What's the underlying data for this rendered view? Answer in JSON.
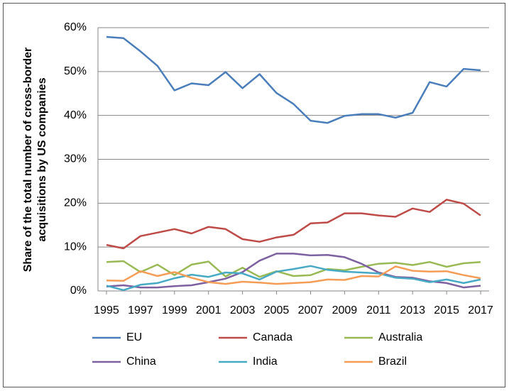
{
  "chart_data": {
    "type": "line",
    "ylabel": [
      "Share of the total number of cross-border",
      "acquisitions by US companies"
    ],
    "x": [
      1995,
      1996,
      1997,
      1998,
      1999,
      2000,
      2001,
      2002,
      2003,
      2004,
      2005,
      2006,
      2007,
      2008,
      2009,
      2010,
      2011,
      2012,
      2013,
      2014,
      2015,
      2016,
      2017
    ],
    "xlim": [
      1994.5,
      2017.5
    ],
    "xticks": [
      1995,
      1997,
      1999,
      2001,
      2003,
      2005,
      2007,
      2009,
      2011,
      2013,
      2015,
      2017
    ],
    "ylim": [
      0,
      60
    ],
    "yticks": [
      {
        "value": 0,
        "label": "0%"
      },
      {
        "value": 10,
        "label": "10%"
      },
      {
        "value": 20,
        "label": "20%"
      },
      {
        "value": 30,
        "label": "30%"
      },
      {
        "value": 40,
        "label": "40%"
      },
      {
        "value": 50,
        "label": "50%"
      },
      {
        "value": 60,
        "label": "60%"
      }
    ],
    "grid": true,
    "legend": "bottom",
    "series": [
      {
        "name": "EU",
        "color": "#4a7ebb",
        "values": [
          57.9,
          57.6,
          54.6,
          51.3,
          45.7,
          47.3,
          46.9,
          49.9,
          46.2,
          49.4,
          45.1,
          42.6,
          38.8,
          38.3,
          39.9,
          40.3,
          40.3,
          39.5,
          40.6,
          47.6,
          46.6,
          50.6,
          50.3
        ]
      },
      {
        "name": "Canada",
        "color": "#be4b48",
        "values": [
          10.5,
          9.7,
          12.5,
          13.3,
          14.1,
          13.1,
          14.6,
          14.1,
          11.8,
          11.2,
          12.2,
          12.8,
          15.4,
          15.6,
          17.7,
          17.7,
          17.2,
          16.9,
          18.8,
          18.0,
          20.8,
          19.9,
          17.2
        ]
      },
      {
        "name": "Australia",
        "color": "#98b954",
        "values": [
          6.6,
          6.8,
          4.3,
          6.0,
          3.6,
          6.0,
          6.7,
          3.3,
          5.3,
          3.2,
          4.5,
          3.4,
          3.6,
          5.0,
          4.7,
          5.5,
          6.2,
          6.4,
          5.9,
          6.6,
          5.5,
          6.3,
          6.6
        ]
      },
      {
        "name": "China",
        "color": "#7d60a0",
        "values": [
          1.0,
          1.3,
          0.8,
          0.8,
          1.1,
          1.3,
          2.0,
          2.8,
          4.3,
          6.9,
          8.5,
          8.5,
          8.1,
          8.2,
          7.7,
          6.2,
          4.2,
          3.2,
          3.0,
          2.2,
          1.8,
          0.8,
          1.2
        ]
      },
      {
        "name": "India",
        "color": "#46aac5",
        "values": [
          1.2,
          0.2,
          1.4,
          1.8,
          2.9,
          3.7,
          3.2,
          4.2,
          4.0,
          2.6,
          4.4,
          5.0,
          5.7,
          4.8,
          4.4,
          4.2,
          4.0,
          3.0,
          2.8,
          2.0,
          2.6,
          1.8,
          2.6
        ]
      },
      {
        "name": "Brazil",
        "color": "#f59d56",
        "values": [
          2.4,
          2.3,
          4.5,
          3.4,
          4.3,
          3.0,
          2.0,
          1.6,
          2.1,
          1.9,
          1.6,
          1.8,
          2.0,
          2.6,
          2.5,
          3.4,
          3.3,
          5.6,
          4.6,
          4.4,
          4.5,
          3.6,
          2.9
        ]
      }
    ]
  }
}
